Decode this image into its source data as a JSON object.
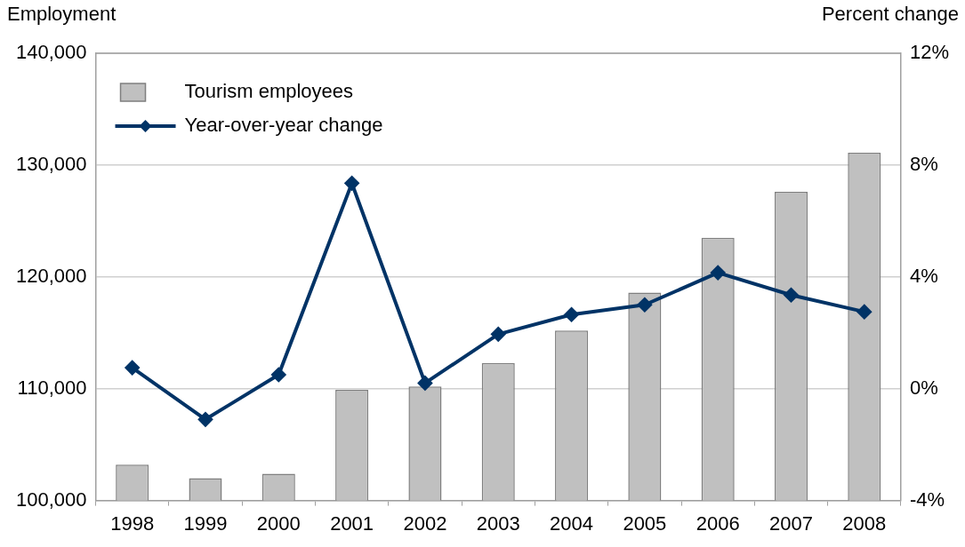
{
  "chart_data": {
    "type": "bar",
    "ylabel": "Employment",
    "y2label": "Percent change",
    "categories": [
      "1998",
      "1999",
      "2000",
      "2001",
      "2002",
      "2003",
      "2004",
      "2005",
      "2006",
      "2007",
      "2008"
    ],
    "series": [
      {
        "name": "Tourism employees",
        "color": "#c0c0c0",
        "values": [
          103200,
          102000,
          102400,
          109900,
          110200,
          112300,
          115200,
          118600,
          123500,
          127600,
          131100
        ]
      },
      {
        "name": "Year-over-year change",
        "type": "line",
        "axis": "y2",
        "color": "#003366",
        "values": [
          0.75,
          -1.1,
          0.5,
          7.35,
          0.2,
          1.95,
          2.65,
          3.0,
          4.15,
          3.35,
          2.75
        ]
      }
    ],
    "ylim": [
      100000,
      140000
    ],
    "yticks": [
      {
        "value": 100000,
        "label": "100,000"
      },
      {
        "value": 110000,
        "label": "110,000"
      },
      {
        "value": 120000,
        "label": "120,000"
      },
      {
        "value": 130000,
        "label": "130,000"
      },
      {
        "value": 140000,
        "label": "140,000"
      }
    ],
    "y2lim": [
      -4,
      12
    ],
    "y2ticks": [
      {
        "value": -4,
        "label": "-4%"
      },
      {
        "value": 0,
        "label": "0%"
      },
      {
        "value": 4,
        "label": "4%"
      },
      {
        "value": 8,
        "label": "8%"
      },
      {
        "value": 12,
        "label": "12%"
      }
    ],
    "grid": "y",
    "legend": "top left",
    "marker": "diamond",
    "line_style": "solid"
  }
}
